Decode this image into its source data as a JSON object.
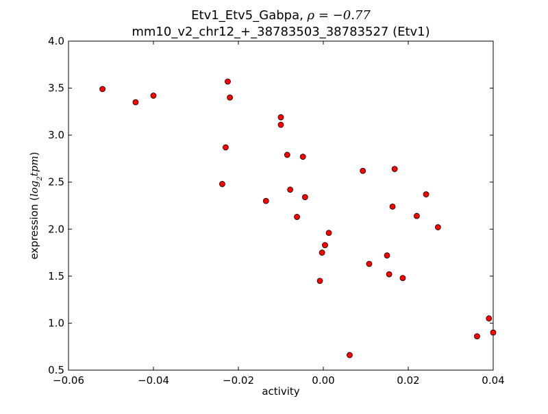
{
  "chart_data": {
    "type": "scatter",
    "title_prefix": "Etv1_Etv5_Gabpa, ",
    "title_rho": "ρ = −0.77",
    "subtitle": "mm10_v2_chr12_+_38783503_38783527 (Etv1)",
    "xlabel": "activity",
    "ylabel_prefix": "expression (",
    "ylabel_math": "log",
    "ylabel_sub": "2",
    "ylabel_math2": "tpm",
    "ylabel_suffix": ")",
    "xlim": [
      -0.06,
      0.04
    ],
    "ylim": [
      0.5,
      4.0
    ],
    "xticks": [
      -0.06,
      -0.04,
      -0.02,
      0.0,
      0.02,
      0.04
    ],
    "xtick_labels": [
      "−0.06",
      "−0.04",
      "−0.02",
      "0.00",
      "0.02",
      "0.04"
    ],
    "yticks": [
      0.5,
      1.0,
      1.5,
      2.0,
      2.5,
      3.0,
      3.5,
      4.0
    ],
    "ytick_labels": [
      "0.5",
      "1.0",
      "1.5",
      "2.0",
      "2.5",
      "3.0",
      "3.5",
      "4.0"
    ],
    "marker_color": "#ff0000",
    "marker_edge": "#000000",
    "grid": false,
    "points": [
      {
        "x": -0.052,
        "y": 3.49
      },
      {
        "x": -0.0442,
        "y": 3.35
      },
      {
        "x": -0.04,
        "y": 3.42
      },
      {
        "x": -0.0225,
        "y": 3.57
      },
      {
        "x": -0.022,
        "y": 3.4
      },
      {
        "x": -0.023,
        "y": 2.87
      },
      {
        "x": -0.0238,
        "y": 2.48
      },
      {
        "x": -0.0135,
        "y": 2.3
      },
      {
        "x": -0.01,
        "y": 3.19
      },
      {
        "x": -0.01,
        "y": 3.11
      },
      {
        "x": -0.0085,
        "y": 2.79
      },
      {
        "x": -0.0078,
        "y": 2.42
      },
      {
        "x": -0.0062,
        "y": 2.13
      },
      {
        "x": -0.0048,
        "y": 2.77
      },
      {
        "x": -0.0043,
        "y": 2.34
      },
      {
        "x": -0.0008,
        "y": 1.45
      },
      {
        "x": -0.0003,
        "y": 1.75
      },
      {
        "x": 0.0004,
        "y": 1.83
      },
      {
        "x": 0.0013,
        "y": 1.96
      },
      {
        "x": 0.0062,
        "y": 0.66
      },
      {
        "x": 0.0093,
        "y": 2.62
      },
      {
        "x": 0.0108,
        "y": 1.63
      },
      {
        "x": 0.015,
        "y": 1.72
      },
      {
        "x": 0.0155,
        "y": 1.52
      },
      {
        "x": 0.0163,
        "y": 2.24
      },
      {
        "x": 0.0168,
        "y": 2.64
      },
      {
        "x": 0.0187,
        "y": 1.48
      },
      {
        "x": 0.022,
        "y": 2.14
      },
      {
        "x": 0.0242,
        "y": 2.37
      },
      {
        "x": 0.027,
        "y": 2.02
      },
      {
        "x": 0.0362,
        "y": 0.86
      },
      {
        "x": 0.039,
        "y": 1.05
      },
      {
        "x": 0.04,
        "y": 0.9
      }
    ]
  }
}
